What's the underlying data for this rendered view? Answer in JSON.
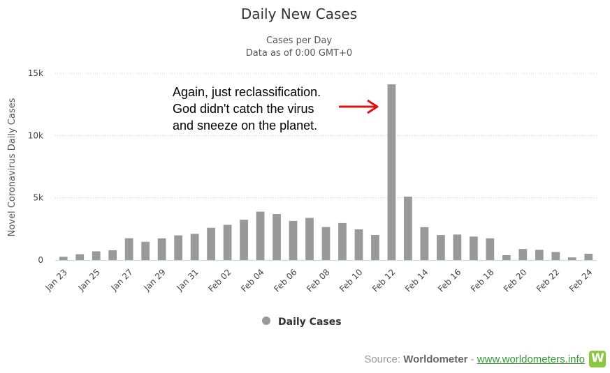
{
  "chart_data": {
    "type": "bar",
    "title": "Daily New Cases",
    "subtitle_lines": [
      "Cases per Day",
      "Data as of 0:00 GMT+0"
    ],
    "ylabel": "Novel Coronavirus Daily Cases",
    "ylim": [
      0,
      15000
    ],
    "yticks": [
      {
        "value": 0,
        "label": "0"
      },
      {
        "value": 5000,
        "label": "5k"
      },
      {
        "value": 10000,
        "label": "10k"
      },
      {
        "value": 15000,
        "label": "15k"
      }
    ],
    "categories": [
      "Jan 23",
      "Jan 24",
      "Jan 25",
      "Jan 26",
      "Jan 27",
      "Jan 28",
      "Jan 29",
      "Jan 30",
      "Jan 31",
      "Feb 01",
      "Feb 02",
      "Feb 03",
      "Feb 04",
      "Feb 05",
      "Feb 06",
      "Feb 07",
      "Feb 08",
      "Feb 09",
      "Feb 10",
      "Feb 11",
      "Feb 12",
      "Feb 13",
      "Feb 14",
      "Feb 15",
      "Feb 16",
      "Feb 17",
      "Feb 18",
      "Feb 19",
      "Feb 20",
      "Feb 21",
      "Feb 22",
      "Feb 23",
      "Feb 24"
    ],
    "xtick_labels": [
      "Jan 23",
      "Jan 25",
      "Jan 27",
      "Jan 29",
      "Jan 31",
      "Feb 02",
      "Feb 04",
      "Feb 06",
      "Feb 08",
      "Feb 10",
      "Feb 12",
      "Feb 14",
      "Feb 16",
      "Feb 18",
      "Feb 20",
      "Feb 22",
      "Feb 24"
    ],
    "series": [
      {
        "name": "Daily Cases",
        "color": "#999999",
        "values": [
          265,
          468,
          701,
          787,
          1753,
          1466,
          1740,
          1980,
          2102,
          2590,
          2829,
          3235,
          3887,
          3694,
          3143,
          3385,
          2652,
          2973,
          2467,
          2015,
          14108,
          5090,
          2641,
          2008,
          2048,
          1886,
          1749,
          391,
          889,
          823,
          648,
          214,
          508
        ]
      }
    ],
    "annotation": {
      "lines": [
        "Again, just reclassification.",
        "God didn't catch the virus",
        "and sneeze on the planet."
      ],
      "arrow_color": "#dd1111"
    },
    "grid": true,
    "legend": "bottom-center"
  },
  "credits": {
    "prefix": "Source: ",
    "name": "Worldometer",
    "separator": " - ",
    "link": "www.worldometers.info",
    "logo_icon": "worldometer-logo-icon"
  }
}
